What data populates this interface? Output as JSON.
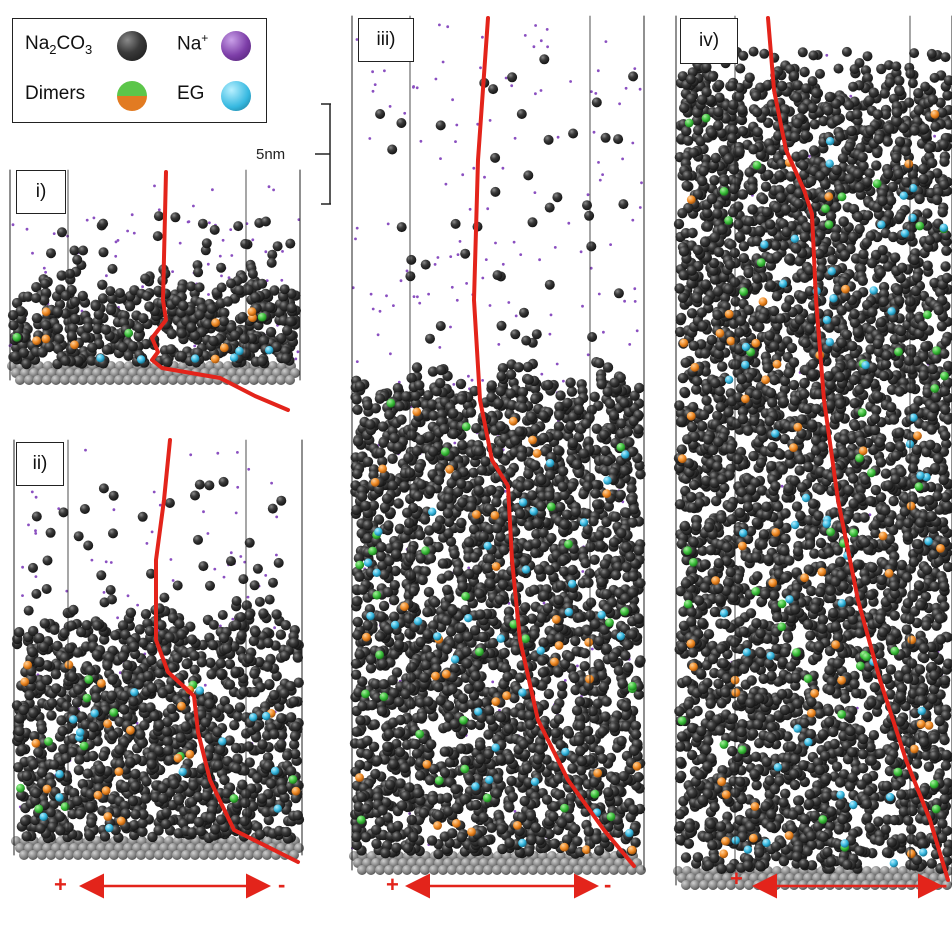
{
  "legend": {
    "na2co3_prefix": "Na",
    "na2co3_sub1": "2",
    "na2co3_mid": "CO",
    "na2co3_sub2": "3",
    "nap_base": "Na",
    "nap_sup": "+",
    "dimers": "Dimers",
    "eg": "EG"
  },
  "scale_bar": {
    "label": "5nm"
  },
  "panels": [
    {
      "label": "i)"
    },
    {
      "label": "ii)"
    },
    {
      "label": "iii)"
    },
    {
      "label": "iv)"
    }
  ],
  "electrodes": {
    "positive": "+",
    "negative": "-"
  },
  "colors": {
    "na2co3": "#3a3a3a",
    "na_ion": "#7d3ea8",
    "dimer_green": "#3bbf3b",
    "dimer_orange": "#f08a24",
    "eg": "#36b8e0",
    "profile_line": "#e3241b",
    "substrate": "#8a8a8a"
  }
}
